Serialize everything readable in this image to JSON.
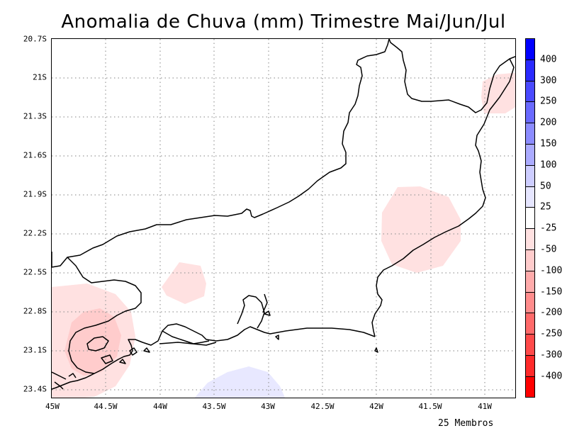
{
  "title": "Anomalia de Chuva (mm) Trimestre Mai/Jun/Jul",
  "footer": "25 Membros",
  "axes": {
    "lat_labels": [
      "20.7S",
      "21S",
      "21.3S",
      "21.6S",
      "21.9S",
      "22.2S",
      "22.5S",
      "22.8S",
      "23.1S",
      "23.4S"
    ],
    "lon_labels": [
      "45W",
      "44.5W",
      "44W",
      "43.5W",
      "43W",
      "42.5W",
      "42W",
      "41.5W",
      "41W"
    ]
  },
  "colorbar": {
    "labels": [
      "400",
      "300",
      "250",
      "200",
      "150",
      "100",
      "50",
      "25",
      "-25",
      "-50",
      "-100",
      "-150",
      "-200",
      "-250",
      "-300",
      "-400"
    ],
    "colors": [
      "#0000ff",
      "#2a2aff",
      "#4a4aff",
      "#6a6aff",
      "#8c8cff",
      "#ababff",
      "#cdcdff",
      "#e6e6ff",
      "#ffffff",
      "#ffe1e1",
      "#ffcccc",
      "#ffabab",
      "#ff8c8c",
      "#ff6a6a",
      "#ff4a4a",
      "#ff2a2a",
      "#ff0000"
    ]
  },
  "anomaly_regions": [
    {
      "name": "southwest coast",
      "level": "-50"
    },
    {
      "name": "southwest core",
      "level": "-100"
    },
    {
      "name": "inland",
      "level": "-25"
    },
    {
      "name": "east central",
      "level": "-25"
    },
    {
      "name": "northeast",
      "level": "-25"
    },
    {
      "name": "offshore south",
      "level": "25"
    }
  ],
  "colors": {
    "grid": "#9a9a9a",
    "outline": "#000000"
  }
}
